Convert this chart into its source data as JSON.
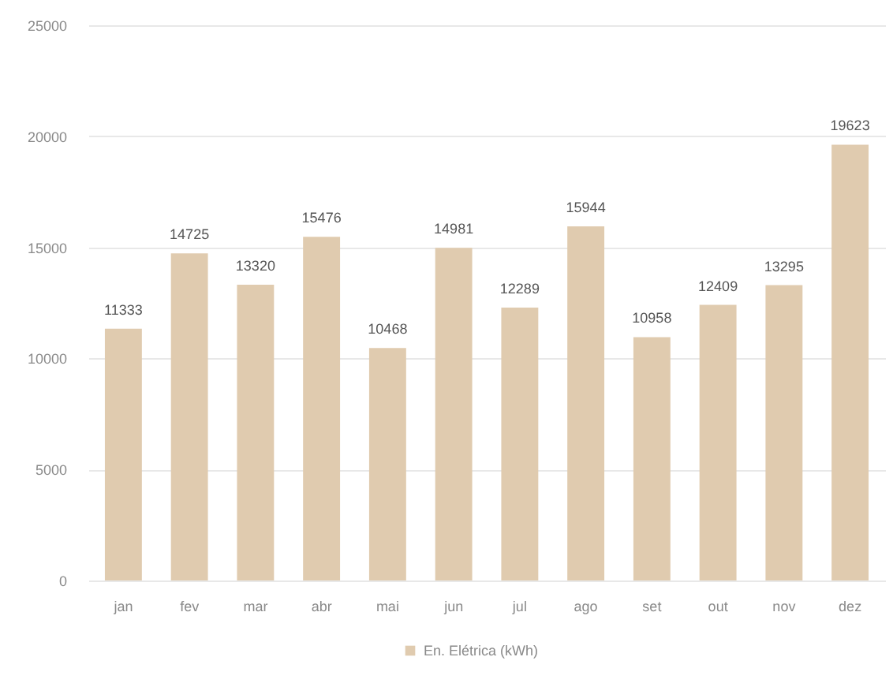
{
  "chart_data": {
    "type": "bar",
    "categories": [
      "jan",
      "fev",
      "mar",
      "abr",
      "mai",
      "jun",
      "jul",
      "ago",
      "set",
      "out",
      "nov",
      "dez"
    ],
    "series": [
      {
        "name": "En. Elétrica (kWh)",
        "color": "#e0cbaf",
        "values": [
          11333,
          14725,
          13320,
          15476,
          10468,
          14981,
          12289,
          15944,
          10958,
          12409,
          13295,
          19623
        ]
      }
    ],
    "ylim": [
      0,
      25000
    ],
    "yticks": [
      0,
      5000,
      10000,
      15000,
      20000,
      25000
    ],
    "grid": "y",
    "data_labels": true,
    "legend": "bottom"
  }
}
